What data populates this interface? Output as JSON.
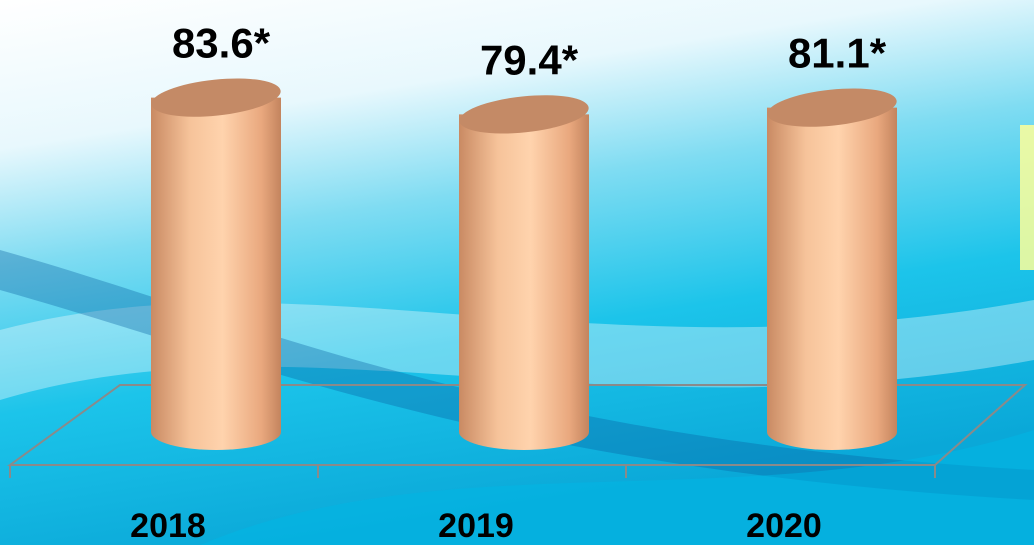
{
  "chart_data": {
    "type": "bar",
    "categories": [
      "2018",
      "2019",
      "2020"
    ],
    "values": [
      83.6,
      79.4,
      81.1
    ],
    "value_labels": [
      "83.6*",
      "79.4*",
      "81.1*"
    ],
    "color": "#f2b58a"
  }
}
